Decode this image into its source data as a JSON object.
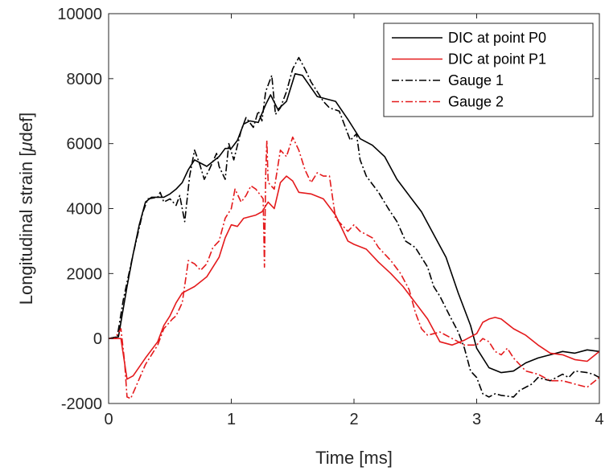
{
  "chart_data": {
    "type": "line",
    "xlabel": "Time [ms]",
    "ylabel_prefix": "Longitudinal strain [",
    "ylabel_mu": "μ",
    "ylabel_suffix": "def]",
    "xlim": [
      0,
      4
    ],
    "ylim": [
      -2000,
      10000
    ],
    "xticks": [
      0,
      1,
      2,
      3,
      4
    ],
    "xtick_labels": [
      "0",
      "1",
      "2",
      "3",
      "4"
    ],
    "yticks": [
      -2000,
      0,
      2000,
      4000,
      6000,
      8000,
      10000
    ],
    "ytick_labels": [
      "-2000",
      "0",
      "2000",
      "4000",
      "6000",
      "8000",
      "10000"
    ],
    "grid": false,
    "legend_position": "top-right",
    "series": [
      {
        "name": "DIC at point P0",
        "color": "#000000",
        "dash": "solid",
        "points": [
          [
            0,
            0
          ],
          [
            0.08,
            50
          ],
          [
            0.15,
            1600
          ],
          [
            0.2,
            2600
          ],
          [
            0.25,
            3500
          ],
          [
            0.3,
            4200
          ],
          [
            0.35,
            4350
          ],
          [
            0.45,
            4350
          ],
          [
            0.5,
            4450
          ],
          [
            0.55,
            4600
          ],
          [
            0.6,
            4800
          ],
          [
            0.65,
            5200
          ],
          [
            0.7,
            5500
          ],
          [
            0.8,
            5300
          ],
          [
            0.9,
            5600
          ],
          [
            0.95,
            5850
          ],
          [
            1.0,
            5850
          ],
          [
            1.05,
            6100
          ],
          [
            1.1,
            6600
          ],
          [
            1.15,
            6700
          ],
          [
            1.22,
            6650
          ],
          [
            1.28,
            7200
          ],
          [
            1.32,
            7500
          ],
          [
            1.38,
            7050
          ],
          [
            1.45,
            7300
          ],
          [
            1.52,
            8150
          ],
          [
            1.58,
            8100
          ],
          [
            1.7,
            7450
          ],
          [
            1.85,
            7300
          ],
          [
            1.95,
            6750
          ],
          [
            2.0,
            6450
          ],
          [
            2.05,
            6150
          ],
          [
            2.15,
            5950
          ],
          [
            2.25,
            5600
          ],
          [
            2.35,
            4900
          ],
          [
            2.45,
            4400
          ],
          [
            2.55,
            3900
          ],
          [
            2.65,
            3200
          ],
          [
            2.75,
            2500
          ],
          [
            2.85,
            1400
          ],
          [
            2.95,
            400
          ],
          [
            3.0,
            -300
          ],
          [
            3.1,
            -900
          ],
          [
            3.2,
            -1050
          ],
          [
            3.3,
            -1000
          ],
          [
            3.4,
            -750
          ],
          [
            3.5,
            -600
          ],
          [
            3.6,
            -500
          ],
          [
            3.7,
            -400
          ],
          [
            3.8,
            -450
          ],
          [
            3.9,
            -350
          ],
          [
            4.0,
            -400
          ]
        ]
      },
      {
        "name": "DIC at point P1",
        "color": "#e41a1c",
        "dash": "solid",
        "points": [
          [
            0,
            0
          ],
          [
            0.1,
            0
          ],
          [
            0.15,
            -1250
          ],
          [
            0.2,
            -1150
          ],
          [
            0.3,
            -600
          ],
          [
            0.4,
            -100
          ],
          [
            0.45,
            400
          ],
          [
            0.5,
            700
          ],
          [
            0.55,
            1100
          ],
          [
            0.6,
            1400
          ],
          [
            0.7,
            1600
          ],
          [
            0.8,
            1900
          ],
          [
            0.9,
            2500
          ],
          [
            0.95,
            3100
          ],
          [
            1.0,
            3500
          ],
          [
            1.05,
            3450
          ],
          [
            1.1,
            3700
          ],
          [
            1.2,
            3800
          ],
          [
            1.25,
            3900
          ],
          [
            1.3,
            4200
          ],
          [
            1.35,
            4000
          ],
          [
            1.4,
            4800
          ],
          [
            1.45,
            5000
          ],
          [
            1.5,
            4850
          ],
          [
            1.55,
            4500
          ],
          [
            1.65,
            4450
          ],
          [
            1.75,
            4300
          ],
          [
            1.8,
            4050
          ],
          [
            1.85,
            3800
          ],
          [
            1.95,
            3000
          ],
          [
            2.0,
            2900
          ],
          [
            2.1,
            2750
          ],
          [
            2.2,
            2350
          ],
          [
            2.3,
            2000
          ],
          [
            2.4,
            1600
          ],
          [
            2.5,
            1100
          ],
          [
            2.6,
            600
          ],
          [
            2.7,
            -100
          ],
          [
            2.8,
            -200
          ],
          [
            2.9,
            -50
          ],
          [
            3.0,
            150
          ],
          [
            3.05,
            500
          ],
          [
            3.1,
            600
          ],
          [
            3.15,
            650
          ],
          [
            3.2,
            600
          ],
          [
            3.3,
            300
          ],
          [
            3.4,
            100
          ],
          [
            3.5,
            -200
          ],
          [
            3.6,
            -450
          ],
          [
            3.7,
            -500
          ],
          [
            3.8,
            -650
          ],
          [
            3.9,
            -700
          ],
          [
            4.0,
            -400
          ]
        ]
      },
      {
        "name": "Gauge 1",
        "color": "#000000",
        "dash": "dashdot",
        "points": [
          [
            0,
            0
          ],
          [
            0.07,
            50
          ],
          [
            0.12,
            1200
          ],
          [
            0.2,
            2600
          ],
          [
            0.28,
            3900
          ],
          [
            0.32,
            4300
          ],
          [
            0.4,
            4350
          ],
          [
            0.42,
            4500
          ],
          [
            0.45,
            4200
          ],
          [
            0.5,
            4300
          ],
          [
            0.55,
            4100
          ],
          [
            0.58,
            4400
          ],
          [
            0.62,
            3600
          ],
          [
            0.66,
            5000
          ],
          [
            0.7,
            5800
          ],
          [
            0.74,
            5400
          ],
          [
            0.78,
            4900
          ],
          [
            0.82,
            5200
          ],
          [
            0.88,
            5700
          ],
          [
            0.9,
            5300
          ],
          [
            0.95,
            4900
          ],
          [
            0.98,
            6000
          ],
          [
            1.02,
            5500
          ],
          [
            1.08,
            6400
          ],
          [
            1.12,
            6800
          ],
          [
            1.18,
            6500
          ],
          [
            1.22,
            7000
          ],
          [
            1.25,
            6700
          ],
          [
            1.28,
            7600
          ],
          [
            1.33,
            8100
          ],
          [
            1.36,
            6900
          ],
          [
            1.4,
            7100
          ],
          [
            1.45,
            7600
          ],
          [
            1.5,
            8300
          ],
          [
            1.55,
            8650
          ],
          [
            1.6,
            8300
          ],
          [
            1.65,
            7900
          ],
          [
            1.7,
            7600
          ],
          [
            1.75,
            7300
          ],
          [
            1.8,
            7100
          ],
          [
            1.88,
            7000
          ],
          [
            1.92,
            6600
          ],
          [
            1.97,
            6100
          ],
          [
            2.02,
            6300
          ],
          [
            2.05,
            5500
          ],
          [
            2.1,
            5000
          ],
          [
            2.2,
            4500
          ],
          [
            2.28,
            4000
          ],
          [
            2.35,
            3600
          ],
          [
            2.42,
            3000
          ],
          [
            2.5,
            2800
          ],
          [
            2.6,
            2200
          ],
          [
            2.65,
            1600
          ],
          [
            2.7,
            1300
          ],
          [
            2.78,
            700
          ],
          [
            2.85,
            200
          ],
          [
            2.9,
            -300
          ],
          [
            2.95,
            -1000
          ],
          [
            3.0,
            -1200
          ],
          [
            3.05,
            -1700
          ],
          [
            3.1,
            -1800
          ],
          [
            3.15,
            -1700
          ],
          [
            3.2,
            -1750
          ],
          [
            3.3,
            -1800
          ],
          [
            3.35,
            -1600
          ],
          [
            3.45,
            -1400
          ],
          [
            3.5,
            -1200
          ],
          [
            3.6,
            -1300
          ],
          [
            3.7,
            -1100
          ],
          [
            3.75,
            -1200
          ],
          [
            3.8,
            -1000
          ],
          [
            3.9,
            -1050
          ],
          [
            3.95,
            -1100
          ],
          [
            4.0,
            -1200
          ]
        ]
      },
      {
        "name": "Gauge 2",
        "color": "#e41a1c",
        "dash": "dashdot",
        "points": [
          [
            0,
            0
          ],
          [
            0.05,
            0
          ],
          [
            0.1,
            300
          ],
          [
            0.13,
            -700
          ],
          [
            0.15,
            -1800
          ],
          [
            0.18,
            -1850
          ],
          [
            0.22,
            -1500
          ],
          [
            0.3,
            -800
          ],
          [
            0.4,
            -200
          ],
          [
            0.45,
            300
          ],
          [
            0.52,
            600
          ],
          [
            0.55,
            700
          ],
          [
            0.6,
            1100
          ],
          [
            0.65,
            2400
          ],
          [
            0.7,
            2300
          ],
          [
            0.75,
            2100
          ],
          [
            0.8,
            2300
          ],
          [
            0.85,
            2800
          ],
          [
            0.9,
            3000
          ],
          [
            0.95,
            3700
          ],
          [
            1.0,
            4000
          ],
          [
            1.03,
            4600
          ],
          [
            1.08,
            4200
          ],
          [
            1.12,
            4400
          ],
          [
            1.16,
            4700
          ],
          [
            1.2,
            4600
          ],
          [
            1.24,
            4400
          ],
          [
            1.26,
            4300
          ],
          [
            1.27,
            2200
          ],
          [
            1.28,
            5000
          ],
          [
            1.29,
            6100
          ],
          [
            1.3,
            4800
          ],
          [
            1.35,
            4600
          ],
          [
            1.4,
            5800
          ],
          [
            1.45,
            5600
          ],
          [
            1.5,
            6200
          ],
          [
            1.55,
            5800
          ],
          [
            1.6,
            5200
          ],
          [
            1.65,
            4800
          ],
          [
            1.7,
            5100
          ],
          [
            1.75,
            5000
          ],
          [
            1.8,
            5000
          ],
          [
            1.85,
            3700
          ],
          [
            1.9,
            3500
          ],
          [
            1.95,
            3300
          ],
          [
            2.0,
            3500
          ],
          [
            2.05,
            3300
          ],
          [
            2.1,
            3200
          ],
          [
            2.15,
            3100
          ],
          [
            2.2,
            2800
          ],
          [
            2.3,
            2400
          ],
          [
            2.38,
            2000
          ],
          [
            2.45,
            1500
          ],
          [
            2.5,
            800
          ],
          [
            2.55,
            300
          ],
          [
            2.6,
            100
          ],
          [
            2.7,
            200
          ],
          [
            2.8,
            0
          ],
          [
            2.9,
            -200
          ],
          [
            3.0,
            -200
          ],
          [
            3.05,
            0
          ],
          [
            3.1,
            -100
          ],
          [
            3.15,
            -400
          ],
          [
            3.2,
            -500
          ],
          [
            3.25,
            -300
          ],
          [
            3.3,
            -600
          ],
          [
            3.35,
            -800
          ],
          [
            3.4,
            -1000
          ],
          [
            3.5,
            -1100
          ],
          [
            3.6,
            -1300
          ],
          [
            3.7,
            -1300
          ],
          [
            3.8,
            -1400
          ],
          [
            3.9,
            -1500
          ],
          [
            4.0,
            -1200
          ]
        ]
      }
    ]
  }
}
